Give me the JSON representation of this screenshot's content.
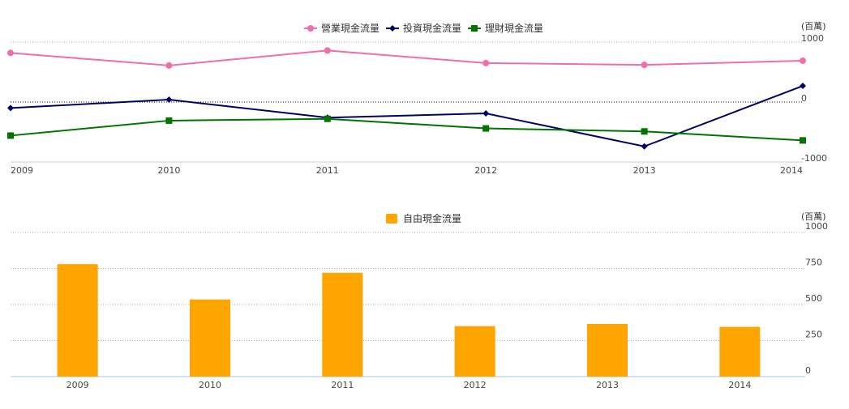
{
  "chart_data": [
    {
      "type": "line",
      "categories": [
        "2009",
        "2010",
        "2011",
        "2012",
        "2013",
        "2014"
      ],
      "series": [
        {
          "name": "營業現金流量",
          "values": [
            820,
            610,
            860,
            650,
            620,
            690
          ],
          "color": "#f06ea9",
          "marker": "circle"
        },
        {
          "name": "投資現金流量",
          "values": [
            -100,
            40,
            -260,
            -190,
            -740,
            270
          ],
          "color": "#000066",
          "marker": "diamond"
        },
        {
          "name": "理財現金流量",
          "values": [
            -560,
            -310,
            -280,
            -440,
            -490,
            -640
          ],
          "color": "#007300",
          "marker": "square"
        }
      ],
      "y_unit_label": "(百萬)",
      "yticks": [
        1000,
        0,
        -1000
      ],
      "ylim": [
        -1000,
        1000
      ],
      "legend_position": "top-center"
    },
    {
      "type": "bar",
      "categories": [
        "2009",
        "2010",
        "2011",
        "2012",
        "2013",
        "2014"
      ],
      "series": [
        {
          "name": "自由現金流量",
          "values": [
            780,
            535,
            720,
            350,
            365,
            345
          ],
          "color": "#ffa500"
        }
      ],
      "y_unit_label": "(百萬)",
      "yticks": [
        1000,
        750,
        500,
        250,
        0
      ],
      "ylim": [
        0,
        1000
      ],
      "legend_position": "top-center",
      "grid": true
    }
  ]
}
